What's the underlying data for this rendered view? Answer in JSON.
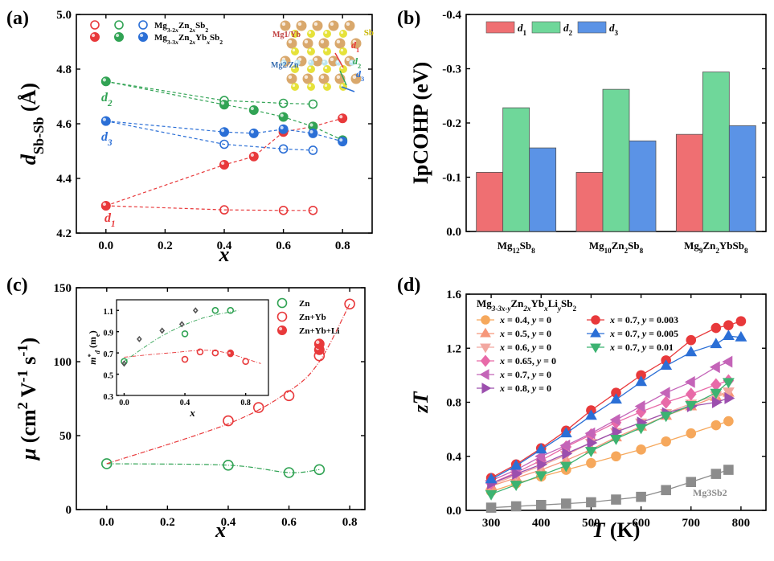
{
  "colors": {
    "red": "#e8393b",
    "green": "#31a354",
    "blue": "#2b6fd6",
    "bar_red": "#ef6f72",
    "bar_green": "#6fd79a",
    "bar_blue": "#5b93e6",
    "gray": "#8c8c8c"
  },
  "chart_data": [
    {
      "panel": "(a)",
      "type": "scatter",
      "xlabel": "x",
      "ylabel": "dSb-Sb (Å)",
      "ylabel_main": "d",
      "ylabel_sub": "Sb-Sb",
      "ylabel_unit": " (Å)",
      "xlim": [
        -0.1,
        0.9
      ],
      "ylim": [
        4.2,
        5.0
      ],
      "xticks": [
        "0.0",
        "0.2",
        "0.4",
        "0.6",
        "0.8"
      ],
      "yticks": [
        "4.2",
        "4.4",
        "4.6",
        "4.8",
        "5.0"
      ],
      "legend": [
        "Mg3-2xZn2xSb2",
        "Mg3-3xZn2xYbxSb2"
      ],
      "legend_html": [
        [
          "Mg",
          "3-2",
          "x",
          "Zn",
          "2",
          "x",
          "Sb",
          "2"
        ],
        [
          "Mg",
          "3-3",
          "x",
          "Zn",
          "2",
          "x",
          "Yb",
          "x",
          "Sb",
          "2"
        ]
      ],
      "annotations": [
        "d1",
        "d2",
        "d3"
      ],
      "inset_labels": [
        "Sb",
        "Mg1/Yb",
        "Mg2/Zn",
        "d1",
        "d2",
        "d3"
      ],
      "series": [
        {
          "name": "d1",
          "style": "open",
          "x": [
            0.0,
            0.4,
            0.6,
            0.7
          ],
          "y": [
            4.3,
            4.285,
            4.283,
            4.283
          ]
        },
        {
          "name": "d1",
          "style": "filled",
          "x": [
            0.0,
            0.4,
            0.5,
            0.6,
            0.7,
            0.8
          ],
          "y": [
            4.3,
            4.45,
            4.48,
            4.57,
            4.59,
            4.62
          ]
        },
        {
          "name": "d2",
          "style": "open",
          "x": [
            0.0,
            0.4,
            0.6,
            0.7
          ],
          "y": [
            4.755,
            4.685,
            4.675,
            4.672
          ]
        },
        {
          "name": "d2",
          "style": "filled",
          "x": [
            0.0,
            0.4,
            0.5,
            0.6,
            0.7,
            0.8
          ],
          "y": [
            4.755,
            4.67,
            4.65,
            4.625,
            4.59,
            4.54
          ]
        },
        {
          "name": "d3",
          "style": "open",
          "x": [
            0.0,
            0.4,
            0.6,
            0.7
          ],
          "y": [
            4.61,
            4.525,
            4.508,
            4.503
          ]
        },
        {
          "name": "d3",
          "style": "filled",
          "x": [
            0.0,
            0.4,
            0.5,
            0.6,
            0.7,
            0.8
          ],
          "y": [
            4.61,
            4.57,
            4.565,
            4.58,
            4.565,
            4.535
          ]
        }
      ]
    },
    {
      "panel": "(b)",
      "type": "bar",
      "ylabel": "IpCOHP (eV)",
      "ylim": [
        0.0,
        -0.4
      ],
      "yticks": [
        "0.0",
        "-0.1",
        "-0.2",
        "-0.3",
        "-0.4"
      ],
      "categories": [
        "Mg12Sb8",
        "Mg10Zn2Sb8",
        "Mg9Zn2YbSb8"
      ],
      "categories_html": [
        [
          "Mg",
          "12",
          "Sb",
          "8"
        ],
        [
          "Mg",
          "10",
          "Zn",
          "2",
          "Sb",
          "8"
        ],
        [
          "Mg",
          "9",
          "Zn",
          "2",
          "YbSb",
          "8"
        ]
      ],
      "legend": [
        "d1",
        "d2",
        "d3"
      ],
      "series": [
        {
          "name": "d1",
          "values": [
            -0.109,
            -0.109,
            -0.179
          ]
        },
        {
          "name": "d2",
          "values": [
            -0.228,
            -0.262,
            -0.294
          ]
        },
        {
          "name": "d3",
          "values": [
            -0.154,
            -0.167,
            -0.195
          ]
        }
      ]
    },
    {
      "panel": "(c)",
      "type": "scatter",
      "xlabel": "x",
      "ylabel": "μ (cm2 V-1 s-1)",
      "xlim": [
        -0.1,
        0.85
      ],
      "ylim": [
        0,
        150
      ],
      "xticks": [
        "0.0",
        "0.2",
        "0.4",
        "0.6",
        "0.8"
      ],
      "yticks": [
        "0",
        "50",
        "100",
        "150"
      ],
      "legend": [
        "Zn",
        "Zn+Yb",
        "Zn+Yb+Li"
      ],
      "series": [
        {
          "name": "Zn",
          "style": "open",
          "x": [
            0.0,
            0.4,
            0.6,
            0.7
          ],
          "y": [
            31,
            30,
            25,
            27
          ]
        },
        {
          "name": "Zn+Yb",
          "style": "open",
          "x": [
            0.4,
            0.5,
            0.6,
            0.7,
            0.8
          ],
          "y": [
            60,
            69,
            77,
            104,
            139
          ]
        },
        {
          "name": "Zn+Yb+Li",
          "style": "filled",
          "x": [
            0.7,
            0.7
          ],
          "y": [
            108,
            112
          ]
        }
      ],
      "inset": {
        "xlabel": "x",
        "ylabel": "m*d (me)",
        "xlim": [
          -0.05,
          0.95
        ],
        "ylim": [
          0.3,
          1.2
        ],
        "xticks": [
          "0.0",
          "0.4",
          "0.8"
        ],
        "yticks": [
          "0.3",
          "0.5",
          "0.7",
          "0.9",
          "1.1"
        ],
        "series": [
          {
            "name": "Zn",
            "style": "open",
            "x": [
              0.0,
              0.4,
              0.6,
              0.7
            ],
            "y": [
              0.62,
              0.88,
              1.1,
              1.1
            ]
          },
          {
            "name": "Zn small",
            "style": "open-small",
            "x": [
              0.0,
              0.1,
              0.25,
              0.38,
              0.47
            ],
            "y": [
              0.6,
              0.83,
              0.91,
              0.97,
              1.1
            ]
          },
          {
            "name": "Zn+Yb",
            "style": "open",
            "x": [
              0.4,
              0.5,
              0.6,
              0.7,
              0.8
            ],
            "y": [
              0.64,
              0.71,
              0.7,
              0.7,
              0.62
            ]
          },
          {
            "name": "Zn+Yb+Li",
            "style": "filled",
            "x": [
              0.7
            ],
            "y": [
              0.69
            ]
          }
        ]
      }
    },
    {
      "panel": "(d)",
      "type": "line",
      "xlabel": "T (K)",
      "ylabel": "zT",
      "xlim": [
        250,
        850
      ],
      "ylim": [
        0.0,
        1.6
      ],
      "xticks": [
        "300",
        "400",
        "500",
        "600",
        "700",
        "800"
      ],
      "yticks": [
        "0.0",
        "0.4",
        "0.8",
        "1.2",
        "1.6"
      ],
      "legend_title": "Mg3-3x-yZn2xYbxLiySb2",
      "legend_title_html": [
        [
          "Mg",
          "n"
        ],
        [
          "3-3x-y",
          "s"
        ],
        [
          "Zn",
          "n"
        ],
        [
          "2x",
          "s"
        ],
        [
          "Yb",
          "n"
        ],
        [
          "x",
          "s"
        ],
        [
          "Li",
          "n"
        ],
        [
          "y",
          "s"
        ],
        [
          "Sb",
          "n"
        ],
        [
          "2",
          "s"
        ]
      ],
      "annotation": "Mg3Sb2",
      "x": [
        300,
        350,
        400,
        450,
        500,
        550,
        600,
        650,
        700,
        750,
        775
      ],
      "series": [
        {
          "name": "x = 0.4, y = 0",
          "marker": "circle",
          "color": "#f6a85c",
          "values": [
            0.14,
            0.2,
            0.25,
            0.3,
            0.35,
            0.4,
            0.45,
            0.51,
            0.57,
            0.63,
            0.66
          ]
        },
        {
          "name": "x = 0.5, y = 0",
          "marker": "triangle-up",
          "color": "#f6977a",
          "values": [
            0.18,
            0.24,
            0.3,
            0.37,
            0.45,
            0.54,
            0.62,
            0.7,
            0.77,
            0.84,
            0.87
          ]
        },
        {
          "name": "x = 0.6, y = 0",
          "marker": "triangle-down",
          "color": "#f2a7a0",
          "values": [
            0.19,
            0.26,
            0.33,
            0.41,
            0.5,
            0.58,
            0.65,
            0.72,
            0.79,
            0.85,
            0.88
          ]
        },
        {
          "name": "x = 0.65, y = 0",
          "marker": "diamond",
          "color": "#e86aa8",
          "values": [
            0.2,
            0.28,
            0.37,
            0.47,
            0.56,
            0.65,
            0.73,
            0.8,
            0.86,
            0.93,
            0.96
          ]
        },
        {
          "name": "x = 0.7, y = 0",
          "marker": "triangle-left",
          "color": "#c464b8",
          "values": [
            0.22,
            0.3,
            0.4,
            0.48,
            0.57,
            0.67,
            0.77,
            0.87,
            0.95,
            1.06,
            1.1
          ]
        },
        {
          "name": "x = 0.8, y = 0",
          "marker": "triangle-right",
          "color": "#9c4fae",
          "values": [
            0.2,
            0.27,
            0.34,
            0.42,
            0.5,
            0.58,
            0.65,
            0.72,
            0.77,
            0.8,
            0.83
          ]
        },
        {
          "name": "x = 0.7, y = 0.003",
          "marker": "circle",
          "color": "#e8393b",
          "x": [
            300,
            350,
            400,
            450,
            500,
            550,
            600,
            650,
            700,
            750,
            775,
            800
          ],
          "values": [
            0.24,
            0.34,
            0.46,
            0.59,
            0.74,
            0.87,
            1.0,
            1.11,
            1.26,
            1.35,
            1.37,
            1.4
          ]
        },
        {
          "name": "x = 0.7, y = 0.005",
          "marker": "triangle-up",
          "color": "#2b6fd6",
          "x": [
            300,
            350,
            400,
            450,
            500,
            550,
            600,
            650,
            700,
            750,
            775,
            800
          ],
          "values": [
            0.23,
            0.33,
            0.45,
            0.57,
            0.7,
            0.82,
            0.95,
            1.07,
            1.17,
            1.23,
            1.29,
            1.28
          ]
        },
        {
          "name": "x = 0.7, y = 0.01",
          "marker": "triangle-down",
          "color": "#3cb371",
          "values": [
            0.12,
            0.19,
            0.26,
            0.33,
            0.44,
            0.53,
            0.61,
            0.7,
            0.78,
            0.87,
            0.95
          ]
        },
        {
          "name": "Mg3Sb2",
          "marker": "square",
          "color": "#8c8c8c",
          "x": [
            300,
            350,
            400,
            450,
            500,
            550,
            600,
            650,
            700,
            750,
            775
          ],
          "values": [
            0.02,
            0.03,
            0.04,
            0.05,
            0.06,
            0.08,
            0.1,
            0.15,
            0.21,
            0.27,
            0.3
          ]
        }
      ]
    }
  ]
}
